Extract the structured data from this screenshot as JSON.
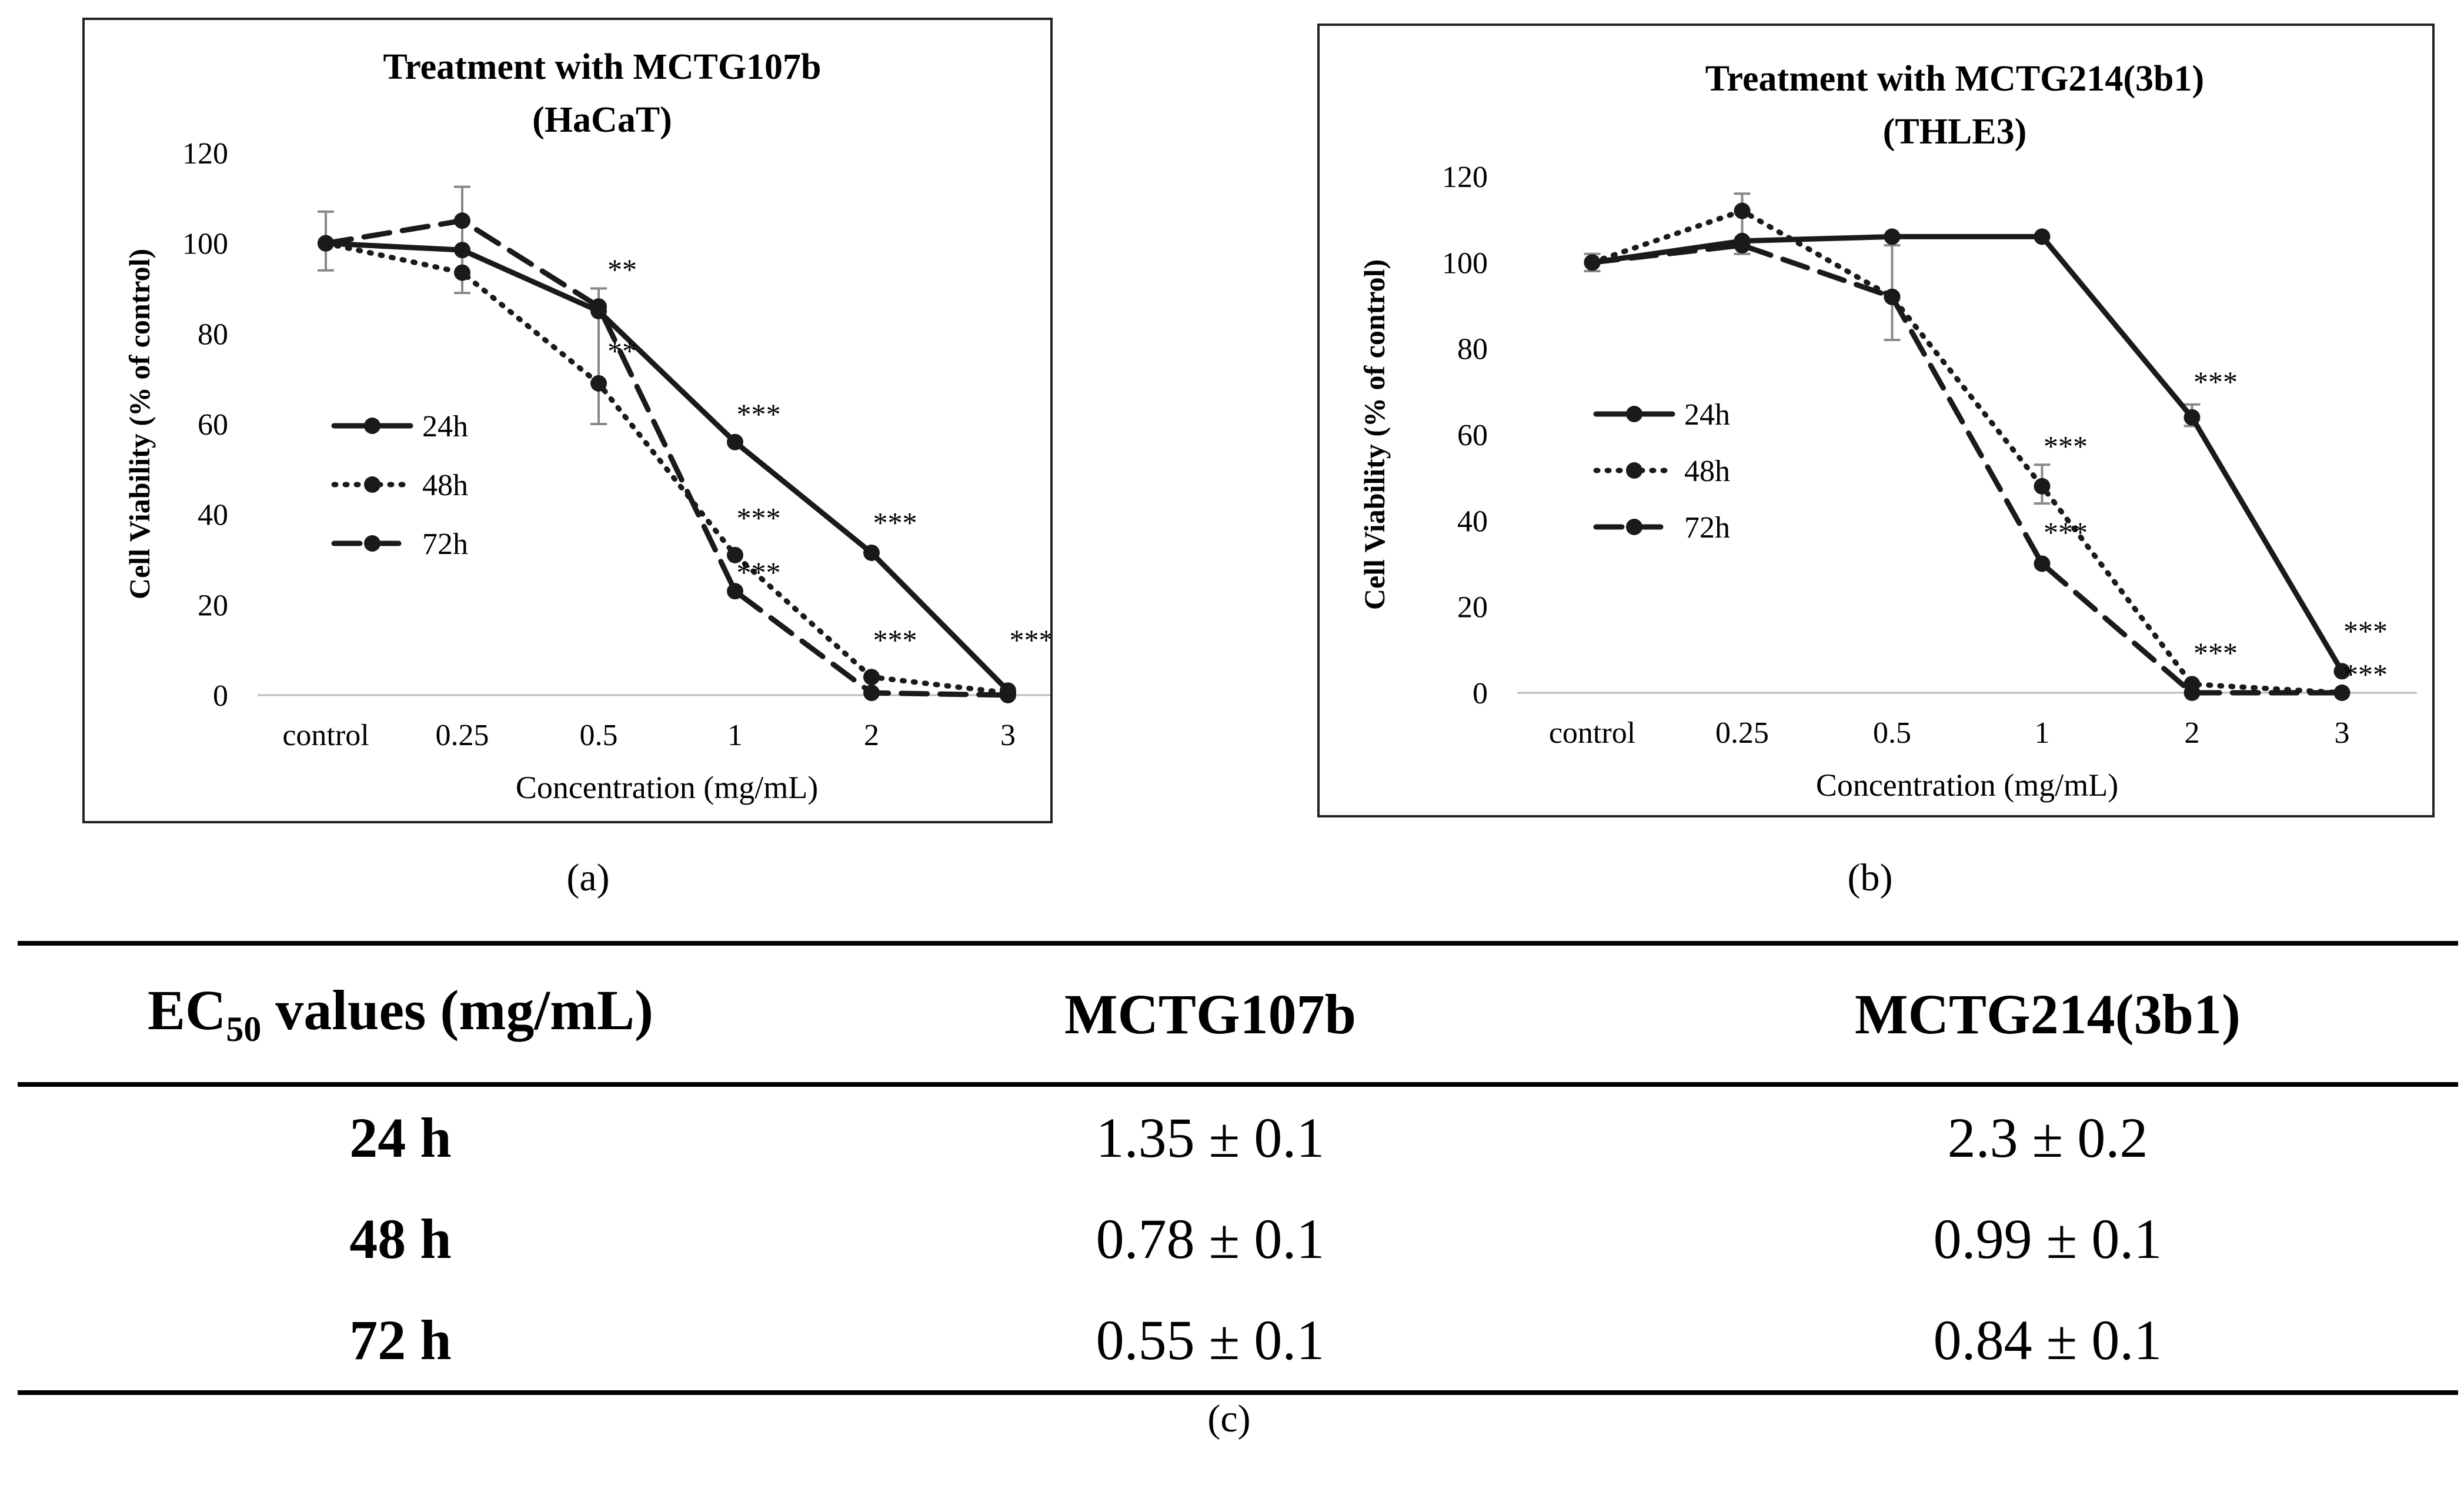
{
  "chart_data": [
    {
      "type": "line",
      "title": "Treatment with MCTG107b",
      "subtitle": "(HaCaT)",
      "xlabel": "Concentration (mg/mL)",
      "ylabel": "Cell Viability (% of control)",
      "categories": [
        "control",
        "0.25",
        "0.5",
        "1",
        "2",
        "3"
      ],
      "ylim": [
        0,
        120
      ],
      "yticks": [
        "0",
        "20",
        "40",
        "60",
        "80",
        "100",
        "120"
      ],
      "legend_position": "left-middle",
      "series": [
        {
          "name": "24h",
          "style": "solid",
          "values": [
            100,
            98.5,
            85,
            56,
            31.5,
            1
          ]
        },
        {
          "name": "48h",
          "style": "dotted",
          "values": [
            100,
            93.5,
            69,
            31,
            4,
            0.5
          ]
        },
        {
          "name": "72h",
          "style": "dashed",
          "values": [
            100,
            105,
            86,
            23,
            0.5,
            0
          ]
        }
      ],
      "error_bars": [
        {
          "category": "control",
          "low": 94,
          "high": 107
        },
        {
          "category": "0.25",
          "low": 89,
          "high": 112.5
        },
        {
          "category": "0.5",
          "low": 60,
          "high": 90
        }
      ],
      "annotations": [
        {
          "text": "**",
          "x": "0.5",
          "y": 92
        },
        {
          "text": "**",
          "x": "0.5",
          "y": 74
        },
        {
          "text": "***",
          "x": "1",
          "y": 60
        },
        {
          "text": "***",
          "x": "1",
          "y": 37
        },
        {
          "text": "***",
          "x": "1",
          "y": 25
        },
        {
          "text": "***",
          "x": "2",
          "y": 36
        },
        {
          "text": "***",
          "x": "2",
          "y": 10
        },
        {
          "text": "***",
          "x": "3",
          "y": 10
        }
      ]
    },
    {
      "type": "line",
      "title": "Treatment with MCTG214(3b1)",
      "subtitle": "(THLE3)",
      "xlabel": "Concentration (mg/mL)",
      "ylabel": "Cell Viability (% of control)",
      "categories": [
        "control",
        "0.25",
        "0.5",
        "1",
        "2",
        "3"
      ],
      "ylim": [
        0,
        120
      ],
      "yticks": [
        "0",
        "20",
        "40",
        "60",
        "80",
        "100",
        "120"
      ],
      "legend_position": "left-middle",
      "series": [
        {
          "name": "24h",
          "style": "solid",
          "values": [
            100,
            105,
            106,
            106,
            64,
            5
          ]
        },
        {
          "name": "48h",
          "style": "dotted",
          "values": [
            100,
            112,
            92,
            48,
            2,
            0
          ]
        },
        {
          "name": "72h",
          "style": "dashed",
          "values": [
            100,
            104,
            92,
            30,
            0,
            0
          ]
        }
      ],
      "error_bars": [
        {
          "category": "control",
          "low": 98,
          "high": 102
        },
        {
          "category": "0.25",
          "low": 102,
          "high": 116
        },
        {
          "category": "0.5",
          "low": 82,
          "high": 104
        },
        {
          "category": "1",
          "low": 44,
          "high": 53
        },
        {
          "category": "2",
          "low": 62,
          "high": 67
        }
      ],
      "annotations": [
        {
          "text": "***",
          "x": "2",
          "y": 70
        },
        {
          "text": "***",
          "x": "1",
          "y": 55
        },
        {
          "text": "***",
          "x": "1",
          "y": 35
        },
        {
          "text": "***",
          "x": "2",
          "y": 7
        },
        {
          "text": "***",
          "x": "3",
          "y": 12
        },
        {
          "text": "***",
          "x": "3",
          "y": 2
        }
      ]
    }
  ],
  "captions": {
    "a": "(a)",
    "b": "(b)",
    "c": "(c)"
  },
  "table": {
    "header_prefix": "EC",
    "header_sub": "50",
    "header_suffix": " values (mg/mL)",
    "columns": [
      "MCTG107b",
      "MCTG214(3b1)"
    ],
    "rows": [
      {
        "label": "24 h",
        "values": [
          "1.35 ± 0.1",
          "2.3 ± 0.2"
        ]
      },
      {
        "label": "48 h",
        "values": [
          "0.78 ± 0.1",
          "0.99 ± 0.1"
        ]
      },
      {
        "label": "72 h",
        "values": [
          "0.55 ± 0.1",
          "0.84 ± 0.1"
        ]
      }
    ]
  }
}
